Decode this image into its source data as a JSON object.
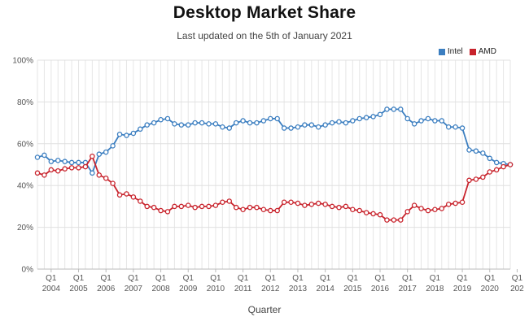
{
  "chart_data": {
    "type": "line",
    "title": "Desktop Market Share",
    "subtitle": "Last updated on the 5th of January 2021",
    "xlabel": "Quarter",
    "ylabel": "",
    "ylim": [
      0,
      100
    ],
    "y_ticks": [
      "0%",
      "20%",
      "40%",
      "60%",
      "80%",
      "100%"
    ],
    "y_tick_values": [
      0,
      20,
      40,
      60,
      80,
      100
    ],
    "x_quarter_label": "Q1",
    "x_year_labels": [
      "2004",
      "2005",
      "2006",
      "2007",
      "2008",
      "2009",
      "2010",
      "2011",
      "2012",
      "2013",
      "2014",
      "2015",
      "2016",
      "2017",
      "2018",
      "2019",
      "2020",
      "202"
    ],
    "grid": true,
    "legend_position": "top-right",
    "series": [
      {
        "name": "Intel",
        "color": "#3b7ec0",
        "values": [
          53.5,
          54.5,
          51.5,
          52,
          51.5,
          51,
          51,
          51,
          46,
          55,
          56,
          59,
          64.5,
          64,
          65,
          67,
          69,
          70,
          71.5,
          72,
          69.5,
          69,
          69,
          70,
          70,
          69.5,
          69.5,
          68,
          67.5,
          70,
          71,
          70,
          70,
          71,
          72,
          72,
          67.5,
          67.5,
          68,
          69,
          69,
          68,
          69,
          70,
          70.5,
          70,
          71,
          72,
          72.5,
          73,
          74,
          76.5,
          76.5,
          76.5,
          72,
          69.5,
          71,
          72,
          71,
          71,
          68,
          68,
          67.5,
          57,
          56.5,
          55.5,
          53,
          51,
          50.5,
          50
        ]
      },
      {
        "name": "AMD",
        "color": "#c8232c",
        "values": [
          46,
          45,
          47.5,
          47,
          48,
          48.5,
          48.5,
          49,
          54,
          45,
          43.5,
          41,
          35.5,
          36,
          34.5,
          32.5,
          30,
          29.5,
          28,
          27.5,
          30,
          30,
          30.5,
          29.5,
          30,
          30,
          30.5,
          32,
          32.5,
          29.5,
          28.5,
          29.5,
          29.5,
          28.5,
          28,
          28,
          32,
          32,
          31.5,
          30.5,
          31,
          31.5,
          31,
          30,
          29.5,
          30,
          28.5,
          28,
          27,
          26.5,
          26,
          23.5,
          23.5,
          23.5,
          27.5,
          30.5,
          29,
          28,
          28.5,
          29,
          31,
          31.5,
          32,
          42.5,
          43,
          44,
          46.5,
          47.5,
          49,
          50
        ]
      }
    ]
  }
}
